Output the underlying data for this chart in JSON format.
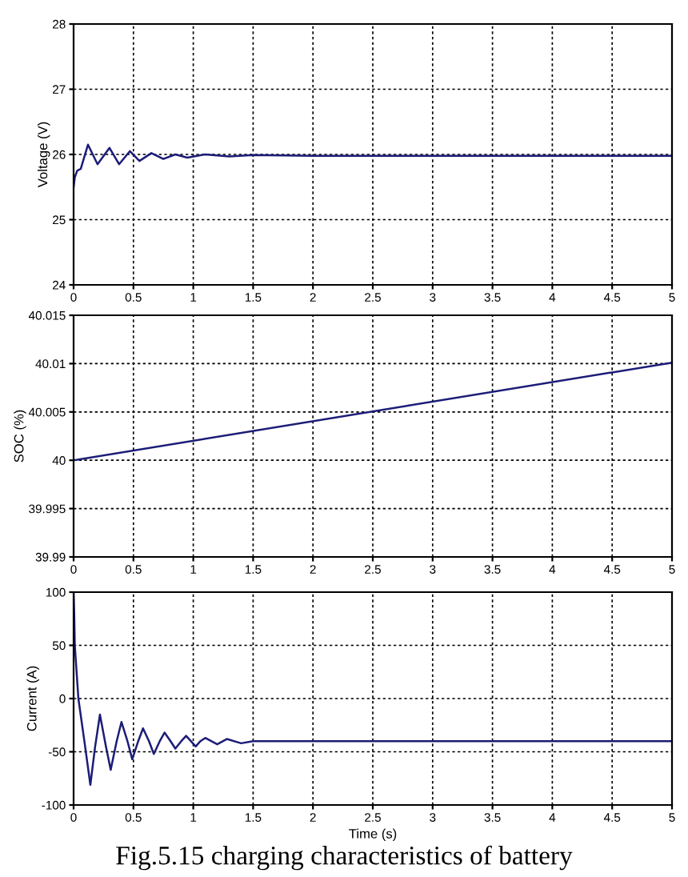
{
  "chart_data": [
    {
      "type": "line",
      "ylabel": "Voltage (V)",
      "x": [
        0,
        0.01,
        0.03,
        0.06,
        0.12,
        0.2,
        0.3,
        0.38,
        0.47,
        0.55,
        0.65,
        0.75,
        0.85,
        0.95,
        1.1,
        1.3,
        1.5,
        2,
        3,
        4,
        5
      ],
      "series": [
        {
          "color": "#1c1c78",
          "values": [
            25.5,
            25.65,
            25.75,
            25.78,
            26.15,
            25.85,
            26.1,
            25.85,
            26.05,
            25.9,
            26.02,
            25.93,
            26.0,
            25.95,
            26.0,
            25.97,
            25.99,
            25.98,
            25.98,
            25.98,
            25.98
          ]
        }
      ],
      "xlim": [
        0,
        5
      ],
      "xticks": [
        0,
        0.5,
        1,
        1.5,
        2,
        2.5,
        3,
        3.5,
        4,
        4.5,
        5
      ],
      "ylim": [
        24,
        28
      ],
      "yticks": [
        24,
        25,
        26,
        27,
        28
      ],
      "grid": true,
      "line_style": "solid"
    },
    {
      "type": "line",
      "ylabel": "SOC (%)",
      "x": [
        0,
        5
      ],
      "series": [
        {
          "color": "#1c1c78",
          "values": [
            40.0,
            40.0101
          ]
        }
      ],
      "xlim": [
        0,
        5
      ],
      "xticks": [
        0,
        0.5,
        1,
        1.5,
        2,
        2.5,
        3,
        3.5,
        4,
        4.5,
        5
      ],
      "ylim": [
        39.99,
        40.015
      ],
      "yticks": [
        39.99,
        39.995,
        40,
        40.005,
        40.01,
        40.015
      ],
      "grid": true,
      "line_style": "solid"
    },
    {
      "type": "line",
      "ylabel": "Current (A)",
      "xlabel": "Time (s)",
      "annotations": [
        "Fig.5.15 charging characteristics of battery"
      ],
      "x": [
        0,
        0.005,
        0.01,
        0.04,
        0.09,
        0.14,
        0.18,
        0.22,
        0.27,
        0.31,
        0.36,
        0.4,
        0.45,
        0.49,
        0.54,
        0.58,
        0.63,
        0.67,
        0.72,
        0.76,
        0.81,
        0.85,
        0.9,
        0.94,
        0.98,
        1.02,
        1.06,
        1.1,
        1.15,
        1.2,
        1.28,
        1.4,
        1.5,
        2,
        3,
        4,
        5
      ],
      "series": [
        {
          "color": "#1c1c78",
          "values": [
            100,
            80,
            50,
            0,
            -40,
            -81,
            -45,
            -15,
            -45,
            -67,
            -40,
            -22,
            -40,
            -57,
            -40,
            -28,
            -40,
            -52,
            -40,
            -32,
            -40,
            -47,
            -40,
            -35,
            -40,
            -45,
            -40,
            -37,
            -40,
            -43,
            -38,
            -42,
            -40,
            -40,
            -40,
            -40,
            -40
          ]
        }
      ],
      "xlim": [
        0,
        5
      ],
      "xticks": [
        0,
        0.5,
        1,
        1.5,
        2,
        2.5,
        3,
        3.5,
        4,
        4.5,
        5
      ],
      "ylim": [
        -100,
        100
      ],
      "yticks": [
        -100,
        -50,
        0,
        50,
        100
      ],
      "grid": true,
      "line_style": "solid"
    }
  ]
}
